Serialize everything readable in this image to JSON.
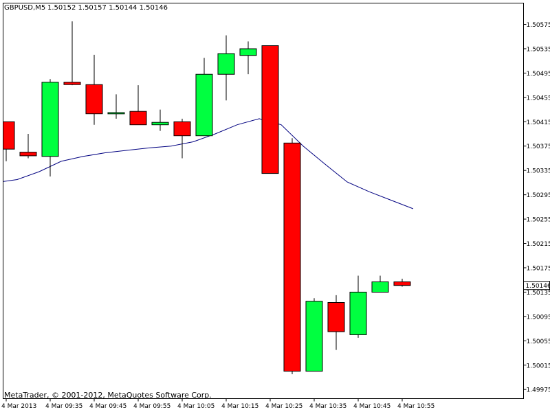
{
  "header": {
    "symbol": "GBPUSD,M5",
    "ohlc": "1.50152 1.50157 1.50144 1.50146"
  },
  "footer": {
    "copyright": "MetaTrader, © 2001-2012, MetaQuotes Software Corp."
  },
  "colors": {
    "bull": "#00ff40",
    "bear": "#ff0000",
    "ma": "#000080",
    "wick": "#000000",
    "axis": "#000000",
    "background": "#ffffff"
  },
  "chart_data": {
    "type": "candlestick",
    "symbol": "GBPUSD",
    "timeframe": "M5",
    "current_price": "1.50146",
    "ylim": [
      1.4996,
      1.5061
    ],
    "y_ticks": [
      "1.50575",
      "1.50535",
      "1.50495",
      "1.50455",
      "1.50415",
      "1.50375",
      "1.50335",
      "1.50295",
      "1.50255",
      "1.50215",
      "1.50175",
      "1.50135",
      "1.50095",
      "1.50055",
      "1.50015",
      "1.49975"
    ],
    "x_ticks": [
      {
        "label": "4 Mar 2013",
        "index": 0
      },
      {
        "label": "4 Mar 09:35",
        "index": 2
      },
      {
        "label": "4 Mar 09:45",
        "index": 4
      },
      {
        "label": "4 Mar 09:55",
        "index": 6
      },
      {
        "label": "4 Mar 10:05",
        "index": 8
      },
      {
        "label": "4 Mar 10:15",
        "index": 10
      },
      {
        "label": "4 Mar 10:25",
        "index": 12
      },
      {
        "label": "4 Mar 10:35",
        "index": 14
      },
      {
        "label": "4 Mar 10:45",
        "index": 16
      },
      {
        "label": "4 Mar 10:55",
        "index": 18
      }
    ],
    "candles": [
      {
        "open": 1.50415,
        "high": 1.50415,
        "low": 1.5035,
        "close": 1.5037
      },
      {
        "open": 1.50365,
        "high": 1.50395,
        "low": 1.50355,
        "close": 1.50359
      },
      {
        "open": 1.50358,
        "high": 1.50485,
        "low": 1.50325,
        "close": 1.5048
      },
      {
        "open": 1.5048,
        "high": 1.5058,
        "low": 1.50475,
        "close": 1.50476
      },
      {
        "open": 1.50476,
        "high": 1.50525,
        "low": 1.5041,
        "close": 1.50428
      },
      {
        "open": 1.50428,
        "high": 1.5046,
        "low": 1.5042,
        "close": 1.5043
      },
      {
        "open": 1.50432,
        "high": 1.50475,
        "low": 1.5041,
        "close": 1.5041
      },
      {
        "open": 1.5041,
        "high": 1.50435,
        "low": 1.504,
        "close": 1.50414
      },
      {
        "open": 1.50415,
        "high": 1.5042,
        "low": 1.50355,
        "close": 1.50392
      },
      {
        "open": 1.50392,
        "high": 1.5052,
        "low": 1.50392,
        "close": 1.50493
      },
      {
        "open": 1.50493,
        "high": 1.50557,
        "low": 1.5045,
        "close": 1.50527
      },
      {
        "open": 1.50524,
        "high": 1.50547,
        "low": 1.50493,
        "close": 1.50535
      },
      {
        "open": 1.5054,
        "high": 1.5054,
        "low": 1.5033,
        "close": 1.5033
      },
      {
        "open": 1.5038,
        "high": 1.50388,
        "low": 1.5,
        "close": 1.50005
      },
      {
        "open": 1.50005,
        "high": 1.50125,
        "low": 1.50005,
        "close": 1.5012
      },
      {
        "open": 1.50118,
        "high": 1.5013,
        "low": 1.5004,
        "close": 1.5007
      },
      {
        "open": 1.50065,
        "high": 1.50162,
        "low": 1.5006,
        "close": 1.50135
      },
      {
        "open": 1.50135,
        "high": 1.50162,
        "low": 1.50135,
        "close": 1.50152
      },
      {
        "open": 1.50152,
        "high": 1.50157,
        "low": 1.50144,
        "close": 1.50146
      }
    ],
    "moving_average": [
      {
        "index": -0.5,
        "value": 1.50315
      },
      {
        "index": 0.5,
        "value": 1.5032
      },
      {
        "index": 1.5,
        "value": 1.50333
      },
      {
        "index": 2.5,
        "value": 1.5035
      },
      {
        "index": 3.5,
        "value": 1.50358
      },
      {
        "index": 4.5,
        "value": 1.50364
      },
      {
        "index": 5.5,
        "value": 1.50368
      },
      {
        "index": 6.5,
        "value": 1.50372
      },
      {
        "index": 7.5,
        "value": 1.50375
      },
      {
        "index": 8.5,
        "value": 1.50382
      },
      {
        "index": 9.5,
        "value": 1.50395
      },
      {
        "index": 10.5,
        "value": 1.5041
      },
      {
        "index": 11.5,
        "value": 1.5042
      },
      {
        "index": 12.5,
        "value": 1.5041
      },
      {
        "index": 13.5,
        "value": 1.50375
      },
      {
        "index": 14.5,
        "value": 1.50345
      },
      {
        "index": 15.5,
        "value": 1.50316
      },
      {
        "index": 16.5,
        "value": 1.503
      },
      {
        "index": 17.5,
        "value": 1.50286
      },
      {
        "index": 18.5,
        "value": 1.50272
      }
    ]
  }
}
